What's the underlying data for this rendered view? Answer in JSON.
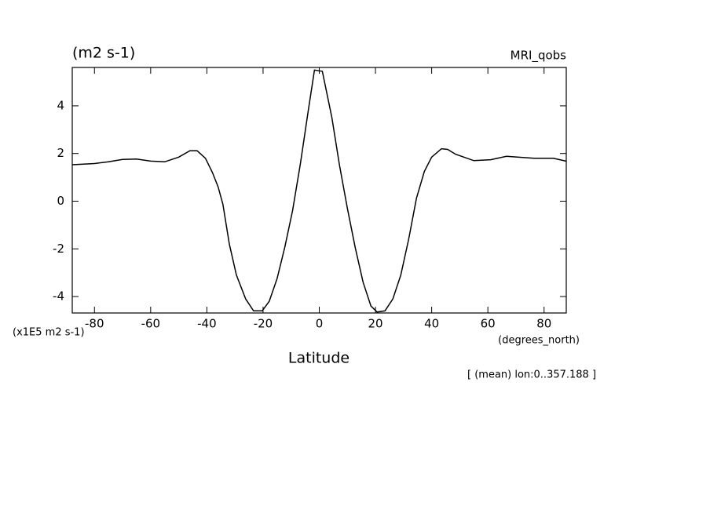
{
  "chart_data": {
    "type": "line",
    "title": "(m2 s-1)",
    "subtitle": "MRI_qobs",
    "y_scale_label": "(x1E5 m2 s-1)",
    "x_unit_label": "(degrees_north)",
    "x_label": "Latitude",
    "annotation": "[ (mean) lon:0..357.188 ]",
    "color": "#000000",
    "x": [
      -87.9,
      -80,
      -75,
      -70,
      -65,
      -60,
      -55,
      -50,
      -46,
      -43.5,
      -40.5,
      -38,
      -36,
      -34.3,
      -32,
      -29.5,
      -26.2,
      -23.4,
      -20.3,
      -17.8,
      -15,
      -12.3,
      -9.5,
      -6.7,
      -3.9,
      -1.7,
      1.1,
      4.5,
      7.2,
      10,
      12.8,
      15.6,
      18.4,
      20.6,
      23.4,
      26.2,
      29,
      31.8,
      34.6,
      37.4,
      40,
      43.5,
      45.7,
      48.5,
      55,
      61,
      66.6,
      76.4,
      83.3,
      87.8
    ],
    "values": [
      1.53,
      1.58,
      1.65,
      1.75,
      1.77,
      1.68,
      1.65,
      1.85,
      2.12,
      2.12,
      1.8,
      1.2,
      0.6,
      -0.13,
      -1.8,
      -3.1,
      -4.1,
      -4.6,
      -4.6,
      -4.2,
      -3.25,
      -1.95,
      -0.4,
      1.58,
      3.8,
      5.5,
      5.45,
      3.5,
      1.5,
      -0.3,
      -1.95,
      -3.4,
      -4.4,
      -4.65,
      -4.6,
      -4.1,
      -3.1,
      -1.6,
      0.13,
      1.25,
      1.85,
      2.2,
      2.17,
      1.97,
      1.7,
      1.74,
      1.88,
      1.8,
      1.8,
      1.68
    ],
    "xlim": [
      -87.9,
      87.9
    ],
    "ylim": [
      -4.69,
      5.61
    ],
    "xticks": [
      -80,
      -60,
      -40,
      -20,
      0,
      20,
      40,
      60,
      80
    ],
    "yticks": [
      -4,
      -2,
      0,
      2,
      4
    ]
  }
}
